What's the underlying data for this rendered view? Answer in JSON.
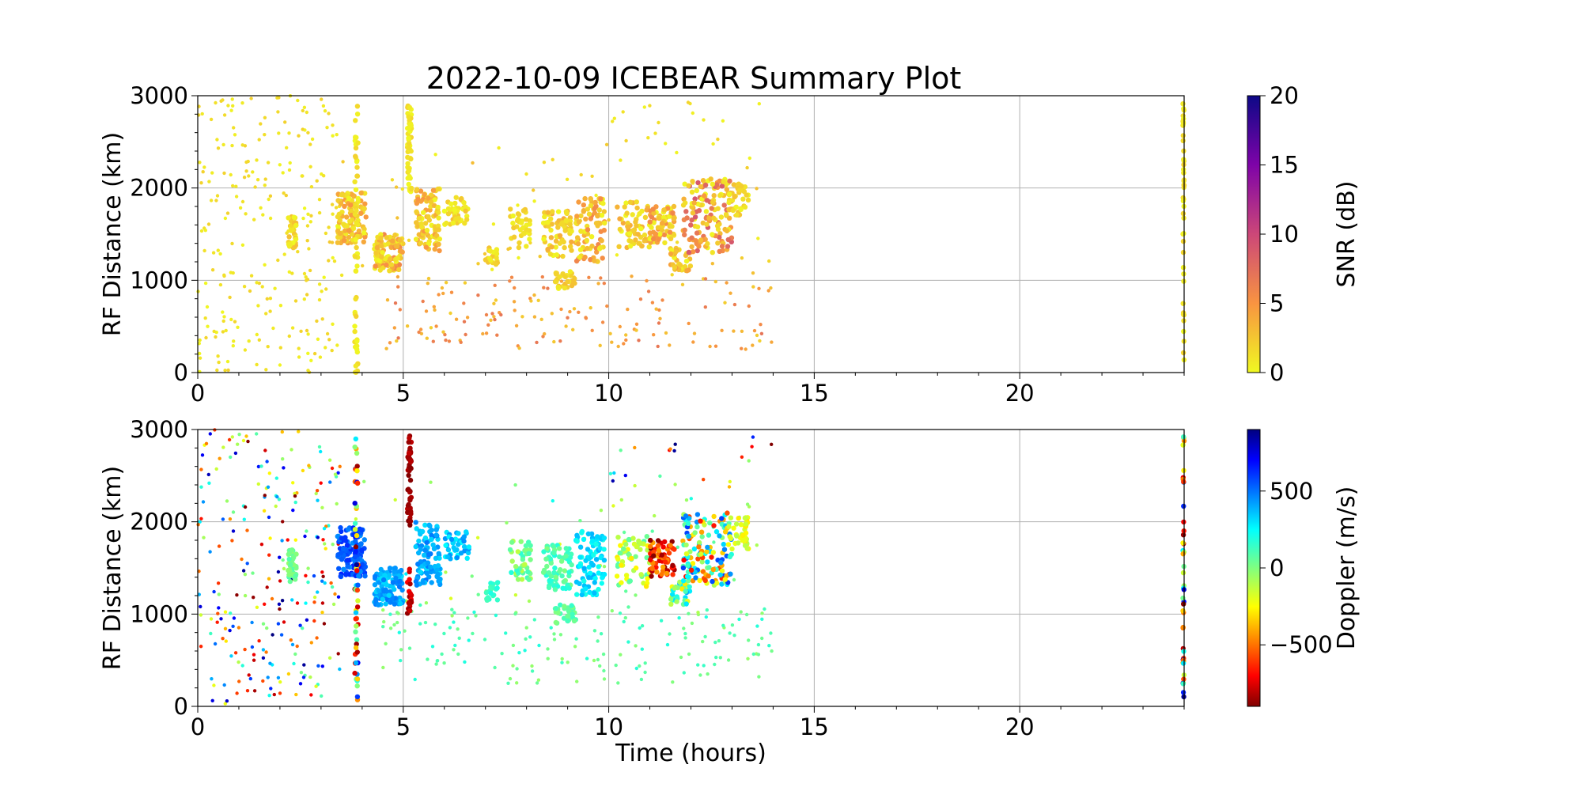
{
  "figure_title": "2022-10-09 ICEBEAR Summary Plot",
  "chart_data": [
    {
      "type": "scatter",
      "panel": "snr",
      "title": "2022-10-09 ICEBEAR Summary Plot",
      "xlabel": "",
      "ylabel": "RF Distance (km)",
      "xlim": [
        0,
        24
      ],
      "ylim": [
        0,
        3000
      ],
      "x_ticks": [
        "0",
        "5",
        "10",
        "15",
        "20"
      ],
      "y_ticks": [
        "0",
        "1000",
        "2000",
        "3000"
      ],
      "grid": true,
      "colorbar": {
        "label": "SNR (dB)",
        "range": [
          0,
          20
        ],
        "ticks": [
          "0",
          "5",
          "10",
          "15",
          "20"
        ],
        "colormap": "plasma_r"
      },
      "clusters": [
        {
          "x": [
            2.2,
            2.4
          ],
          "y": [
            1350,
            1700
          ],
          "n": 40,
          "c": [
            0,
            3
          ]
        },
        {
          "x": [
            3.4,
            4.1
          ],
          "y": [
            1400,
            1950
          ],
          "n": 120,
          "c": [
            0,
            5
          ]
        },
        {
          "x": [
            4.3,
            5.0
          ],
          "y": [
            1100,
            1500
          ],
          "n": 110,
          "c": [
            0,
            6
          ]
        },
        {
          "x": [
            5.1,
            5.2
          ],
          "y": [
            1950,
            2950
          ],
          "n": 50,
          "c": [
            0,
            2
          ]
        },
        {
          "x": [
            5.3,
            5.9
          ],
          "y": [
            1300,
            2000
          ],
          "n": 100,
          "c": [
            0,
            5
          ]
        },
        {
          "x": [
            6.0,
            6.6
          ],
          "y": [
            1600,
            1900
          ],
          "n": 40,
          "c": [
            0,
            3
          ]
        },
        {
          "x": [
            7.0,
            7.3
          ],
          "y": [
            1150,
            1350
          ],
          "n": 20,
          "c": [
            0,
            3
          ]
        },
        {
          "x": [
            7.6,
            8.1
          ],
          "y": [
            1350,
            1800
          ],
          "n": 40,
          "c": [
            0,
            3
          ]
        },
        {
          "x": [
            8.4,
            9.1
          ],
          "y": [
            1250,
            1750
          ],
          "n": 70,
          "c": [
            0,
            4
          ]
        },
        {
          "x": [
            9.2,
            9.9
          ],
          "y": [
            1200,
            1900
          ],
          "n": 90,
          "c": [
            0,
            6
          ]
        },
        {
          "x": [
            8.7,
            9.2
          ],
          "y": [
            900,
            1100
          ],
          "n": 30,
          "c": [
            0,
            3
          ]
        },
        {
          "x": [
            10.2,
            11.0
          ],
          "y": [
            1300,
            1850
          ],
          "n": 60,
          "c": [
            0,
            4
          ]
        },
        {
          "x": [
            11.0,
            11.6
          ],
          "y": [
            1400,
            1800
          ],
          "n": 70,
          "c": [
            0,
            6
          ]
        },
        {
          "x": [
            11.5,
            12.0
          ],
          "y": [
            1100,
            1350
          ],
          "n": 40,
          "c": [
            0,
            5
          ]
        },
        {
          "x": [
            11.8,
            13.0
          ],
          "y": [
            1300,
            2100
          ],
          "n": 140,
          "c": [
            0,
            9
          ]
        },
        {
          "x": [
            12.9,
            13.4
          ],
          "y": [
            1700,
            2050
          ],
          "n": 40,
          "c": [
            0,
            3
          ]
        },
        {
          "x": [
            3.82,
            3.9
          ],
          "y": [
            0,
            2900
          ],
          "n": 60,
          "c": [
            0,
            2
          ]
        },
        {
          "x": [
            23.97,
            24.0
          ],
          "y": [
            0,
            2950
          ],
          "n": 45,
          "c": [
            0,
            2
          ]
        }
      ],
      "scatter": [
        {
          "x": [
            0,
            3.5
          ],
          "y": [
            0,
            3000
          ],
          "n": 240,
          "c": [
            0,
            2
          ]
        },
        {
          "x": [
            4.5,
            14
          ],
          "y": [
            250,
            1050
          ],
          "n": 160,
          "c": [
            2,
            7
          ]
        },
        {
          "x": [
            3.0,
            14
          ],
          "y": [
            1000,
            2500
          ],
          "n": 60,
          "c": [
            0,
            3
          ]
        },
        {
          "x": [
            10,
            14
          ],
          "y": [
            2300,
            2950
          ],
          "n": 20,
          "c": [
            0,
            2
          ]
        }
      ]
    },
    {
      "type": "scatter",
      "panel": "doppler",
      "xlabel": "Time (hours)",
      "ylabel": "RF Distance (km)",
      "xlim": [
        0,
        24
      ],
      "ylim": [
        0,
        3000
      ],
      "x_ticks": [
        "0",
        "5",
        "10",
        "15",
        "20"
      ],
      "y_ticks": [
        "0",
        "1000",
        "2000",
        "3000"
      ],
      "grid": true,
      "colorbar": {
        "label": "Doppler (m/s)",
        "range": [
          -900,
          900
        ],
        "ticks": [
          "−500",
          "0",
          "500"
        ],
        "tick_values": [
          -500,
          0,
          500
        ],
        "colormap": "jet_r"
      },
      "clusters": [
        {
          "x": [
            2.2,
            2.4
          ],
          "y": [
            1350,
            1700
          ],
          "n": 40,
          "c": [
            -50,
            100
          ]
        },
        {
          "x": [
            3.4,
            4.1
          ],
          "y": [
            1400,
            1950
          ],
          "n": 120,
          "c": [
            450,
            650
          ]
        },
        {
          "x": [
            4.3,
            5.0
          ],
          "y": [
            1100,
            1500
          ],
          "n": 110,
          "c": [
            300,
            500
          ]
        },
        {
          "x": [
            5.1,
            5.2
          ],
          "y": [
            1950,
            2950
          ],
          "n": 50,
          "c": [
            -900,
            -800
          ]
        },
        {
          "x": [
            5.1,
            5.2
          ],
          "y": [
            950,
            1500
          ],
          "n": 20,
          "c": [
            -900,
            -700
          ]
        },
        {
          "x": [
            5.3,
            5.9
          ],
          "y": [
            1300,
            2000
          ],
          "n": 100,
          "c": [
            300,
            500
          ]
        },
        {
          "x": [
            6.0,
            6.6
          ],
          "y": [
            1600,
            1900
          ],
          "n": 40,
          "c": [
            250,
            450
          ]
        },
        {
          "x": [
            7.0,
            7.3
          ],
          "y": [
            1150,
            1350
          ],
          "n": 20,
          "c": [
            100,
            200
          ]
        },
        {
          "x": [
            7.6,
            8.1
          ],
          "y": [
            1350,
            1800
          ],
          "n": 40,
          "c": [
            -150,
            200
          ]
        },
        {
          "x": [
            8.4,
            9.1
          ],
          "y": [
            1250,
            1750
          ],
          "n": 70,
          "c": [
            0,
            200
          ]
        },
        {
          "x": [
            9.2,
            9.9
          ],
          "y": [
            1200,
            1900
          ],
          "n": 90,
          "c": [
            200,
            400
          ]
        },
        {
          "x": [
            8.7,
            9.2
          ],
          "y": [
            900,
            1100
          ],
          "n": 30,
          "c": [
            0,
            150
          ]
        },
        {
          "x": [
            10.2,
            11.0
          ],
          "y": [
            1300,
            1850
          ],
          "n": 60,
          "c": [
            -300,
            100
          ]
        },
        {
          "x": [
            11.0,
            11.6
          ],
          "y": [
            1400,
            1800
          ],
          "n": 70,
          "c": [
            -900,
            -400
          ]
        },
        {
          "x": [
            11.5,
            12.0
          ],
          "y": [
            1100,
            1350
          ],
          "n": 40,
          "c": [
            -300,
            400
          ]
        },
        {
          "x": [
            11.8,
            13.0
          ],
          "y": [
            1300,
            2100
          ],
          "n": 140,
          "c": [
            -700,
            600
          ]
        },
        {
          "x": [
            12.9,
            13.4
          ],
          "y": [
            1700,
            2050
          ],
          "n": 40,
          "c": [
            -300,
            -100
          ]
        },
        {
          "x": [
            3.82,
            3.9
          ],
          "y": [
            0,
            2900
          ],
          "n": 60,
          "c": [
            -900,
            900
          ]
        },
        {
          "x": [
            23.97,
            24.0
          ],
          "y": [
            0,
            2950
          ],
          "n": 45,
          "c": [
            -900,
            900
          ]
        }
      ],
      "scatter": [
        {
          "x": [
            0,
            3.5
          ],
          "y": [
            0,
            3000
          ],
          "n": 240,
          "c": [
            -900,
            900
          ]
        },
        {
          "x": [
            4.5,
            14
          ],
          "y": [
            250,
            1050
          ],
          "n": 160,
          "c": [
            -50,
            200
          ]
        },
        {
          "x": [
            3.0,
            14
          ],
          "y": [
            1000,
            2500
          ],
          "n": 60,
          "c": [
            -200,
            300
          ]
        },
        {
          "x": [
            10,
            14
          ],
          "y": [
            2300,
            2950
          ],
          "n": 20,
          "c": [
            -900,
            900
          ]
        }
      ]
    }
  ]
}
